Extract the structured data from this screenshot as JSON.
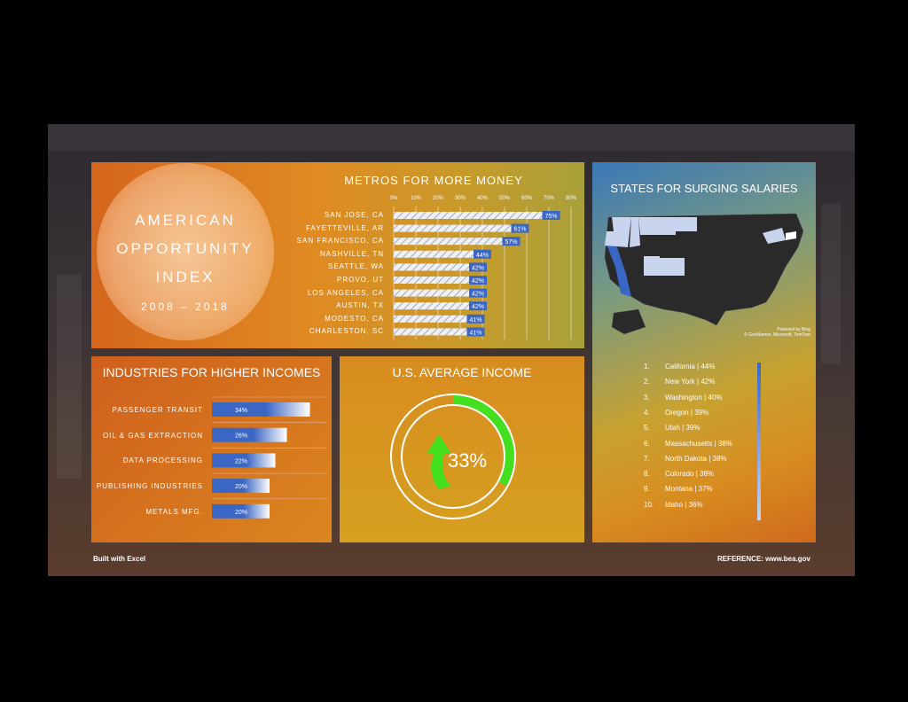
{
  "hero": {
    "title_lines": [
      "AMERICAN",
      "OPPORTUNITY",
      "INDEX"
    ],
    "years": "2008 – 2018"
  },
  "metros": {
    "title": "METROS FOR MORE MONEY"
  },
  "industries": {
    "title": "INDUSTRIES FOR HIGHER INCOMES"
  },
  "average": {
    "title": "U.S. AVERAGE INCOME",
    "value_label": "33%"
  },
  "states": {
    "title": "STATES FOR SURGING SALARIES",
    "map_credit": "Powered by Bing",
    "map_credit2": "© GeoNames, Microsoft, TomTom",
    "ranked": [
      {
        "rank": "1.",
        "text": "California | 44%"
      },
      {
        "rank": "2.",
        "text": "New York | 42%"
      },
      {
        "rank": "3.",
        "text": "Washington | 40%"
      },
      {
        "rank": "4.",
        "text": "Oregon | 39%"
      },
      {
        "rank": "5.",
        "text": "Utah | 39%"
      },
      {
        "rank": "6.",
        "text": "Massachusetts | 38%"
      },
      {
        "rank": "7.",
        "text": "North Dakota | 38%"
      },
      {
        "rank": "8.",
        "text": "Colorado | 38%"
      },
      {
        "rank": "9.",
        "text": "Montana | 37%"
      },
      {
        "rank": "10.",
        "text": "Idaho | 36%"
      }
    ]
  },
  "footer": {
    "left": "Built with Excel",
    "right": "REFERENCE: www.bea.gov"
  },
  "colors": {
    "bar_blue": "#3a66c4",
    "donut_green": "#44e020",
    "map_dark": "#2a2a2a",
    "map_highlight": "#3a66c4",
    "map_light": "#c9d4ee"
  },
  "chart_data": [
    {
      "type": "bar",
      "orientation": "horizontal",
      "title": "METROS FOR MORE MONEY",
      "categories": [
        "SAN JOSE, CA",
        "FAYETTEVILLE, AR",
        "SAN FRANCISCO, CA",
        "NASHVILLE, TN",
        "SEATTLE, WA",
        "PROVO, UT",
        "LOS ANGELES, CA",
        "AUSTIN, TX",
        "MODESTO, CA",
        "CHARLESTON, SC"
      ],
      "values": [
        75,
        61,
        57,
        44,
        42,
        42,
        42,
        42,
        41,
        41
      ],
      "value_labels": [
        "75%",
        "61%",
        "57%",
        "44%",
        "42%",
        "42%",
        "42%",
        "42%",
        "41%",
        "41%"
      ],
      "xticks": [
        "0%",
        "10%",
        "20%",
        "30%",
        "40%",
        "50%",
        "60%",
        "70%",
        "80%"
      ],
      "xlim": [
        0,
        80
      ]
    },
    {
      "type": "bar",
      "orientation": "horizontal",
      "title": "INDUSTRIES FOR HIGHER INCOMES",
      "categories": [
        "PASSENGER TRANSIT",
        "OIL & GAS EXTRACTION",
        "DATA PROCESSING",
        "PUBLISHING INDUSTRIES",
        "METALS MFG."
      ],
      "values": [
        34,
        26,
        22,
        20,
        20
      ],
      "value_labels": [
        "34%",
        "26%",
        "22%",
        "20%",
        "20%"
      ],
      "xlim": [
        0,
        40
      ]
    },
    {
      "type": "pie",
      "style": "donut",
      "title": "U.S. AVERAGE INCOME",
      "values": [
        33,
        67
      ],
      "value_label": "33%"
    }
  ]
}
